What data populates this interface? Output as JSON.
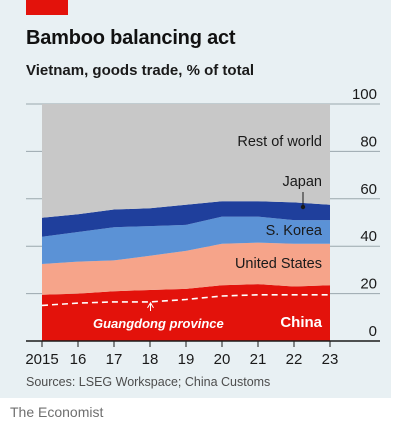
{
  "header": {
    "title": "Bamboo balancing act",
    "subtitle": "Vietnam, goods trade, % of total"
  },
  "footer": {
    "source": "Sources: LSEG Workspace; China Customs",
    "brand": "The Economist"
  },
  "colors": {
    "background": "#e8f0f3",
    "brand_red": "#e3120b",
    "china": "#e3120b",
    "united_states": "#f6a48a",
    "s_korea": "#5b92d6",
    "japan": "#1f3f9c",
    "rest_of_world": "#c8c8c8",
    "guangdong_line": "#ffffff",
    "grid": "#9aa7ad"
  },
  "chart_data": {
    "type": "area",
    "stacked": true,
    "x": [
      2015,
      2016,
      2017,
      2018,
      2019,
      2020,
      2021,
      2022,
      2023
    ],
    "x_tick_labels": [
      "2015",
      "16",
      "17",
      "18",
      "19",
      "20",
      "21",
      "22",
      "23"
    ],
    "ylim": [
      0,
      100
    ],
    "y_ticks": [
      0,
      20,
      40,
      60,
      80,
      100
    ],
    "y_axis_position": "right",
    "grid": true,
    "series": [
      {
        "name": "China",
        "values": [
          19.5,
          20,
          21,
          21.5,
          22,
          23.5,
          24,
          23,
          23.5
        ]
      },
      {
        "name": "United States",
        "values": [
          13,
          13.5,
          13,
          14.5,
          16,
          17.5,
          17.5,
          18,
          17.5
        ]
      },
      {
        "name": "S. Korea",
        "values": [
          11.5,
          12.5,
          14,
          12.5,
          11,
          11.5,
          11,
          10,
          10
        ]
      },
      {
        "name": "Japan",
        "values": [
          8,
          7.5,
          7.5,
          7.5,
          8.5,
          6.5,
          6.5,
          7.5,
          6.5
        ]
      },
      {
        "name": "Rest of world",
        "values": [
          48,
          46.5,
          44.5,
          44,
          42.5,
          41,
          41,
          41.5,
          42.5
        ]
      }
    ],
    "overlay_line": {
      "name": "Guangdong province",
      "style": "dashed",
      "values": [
        15,
        16,
        16.5,
        16.5,
        17.5,
        19,
        19.5,
        19.5,
        19.5
      ]
    },
    "labels": {
      "rest_of_world": "Rest of world",
      "japan": "Japan",
      "s_korea": "S. Korea",
      "united_states": "United States",
      "china": "China",
      "guangdong": "Guangdong province"
    }
  }
}
